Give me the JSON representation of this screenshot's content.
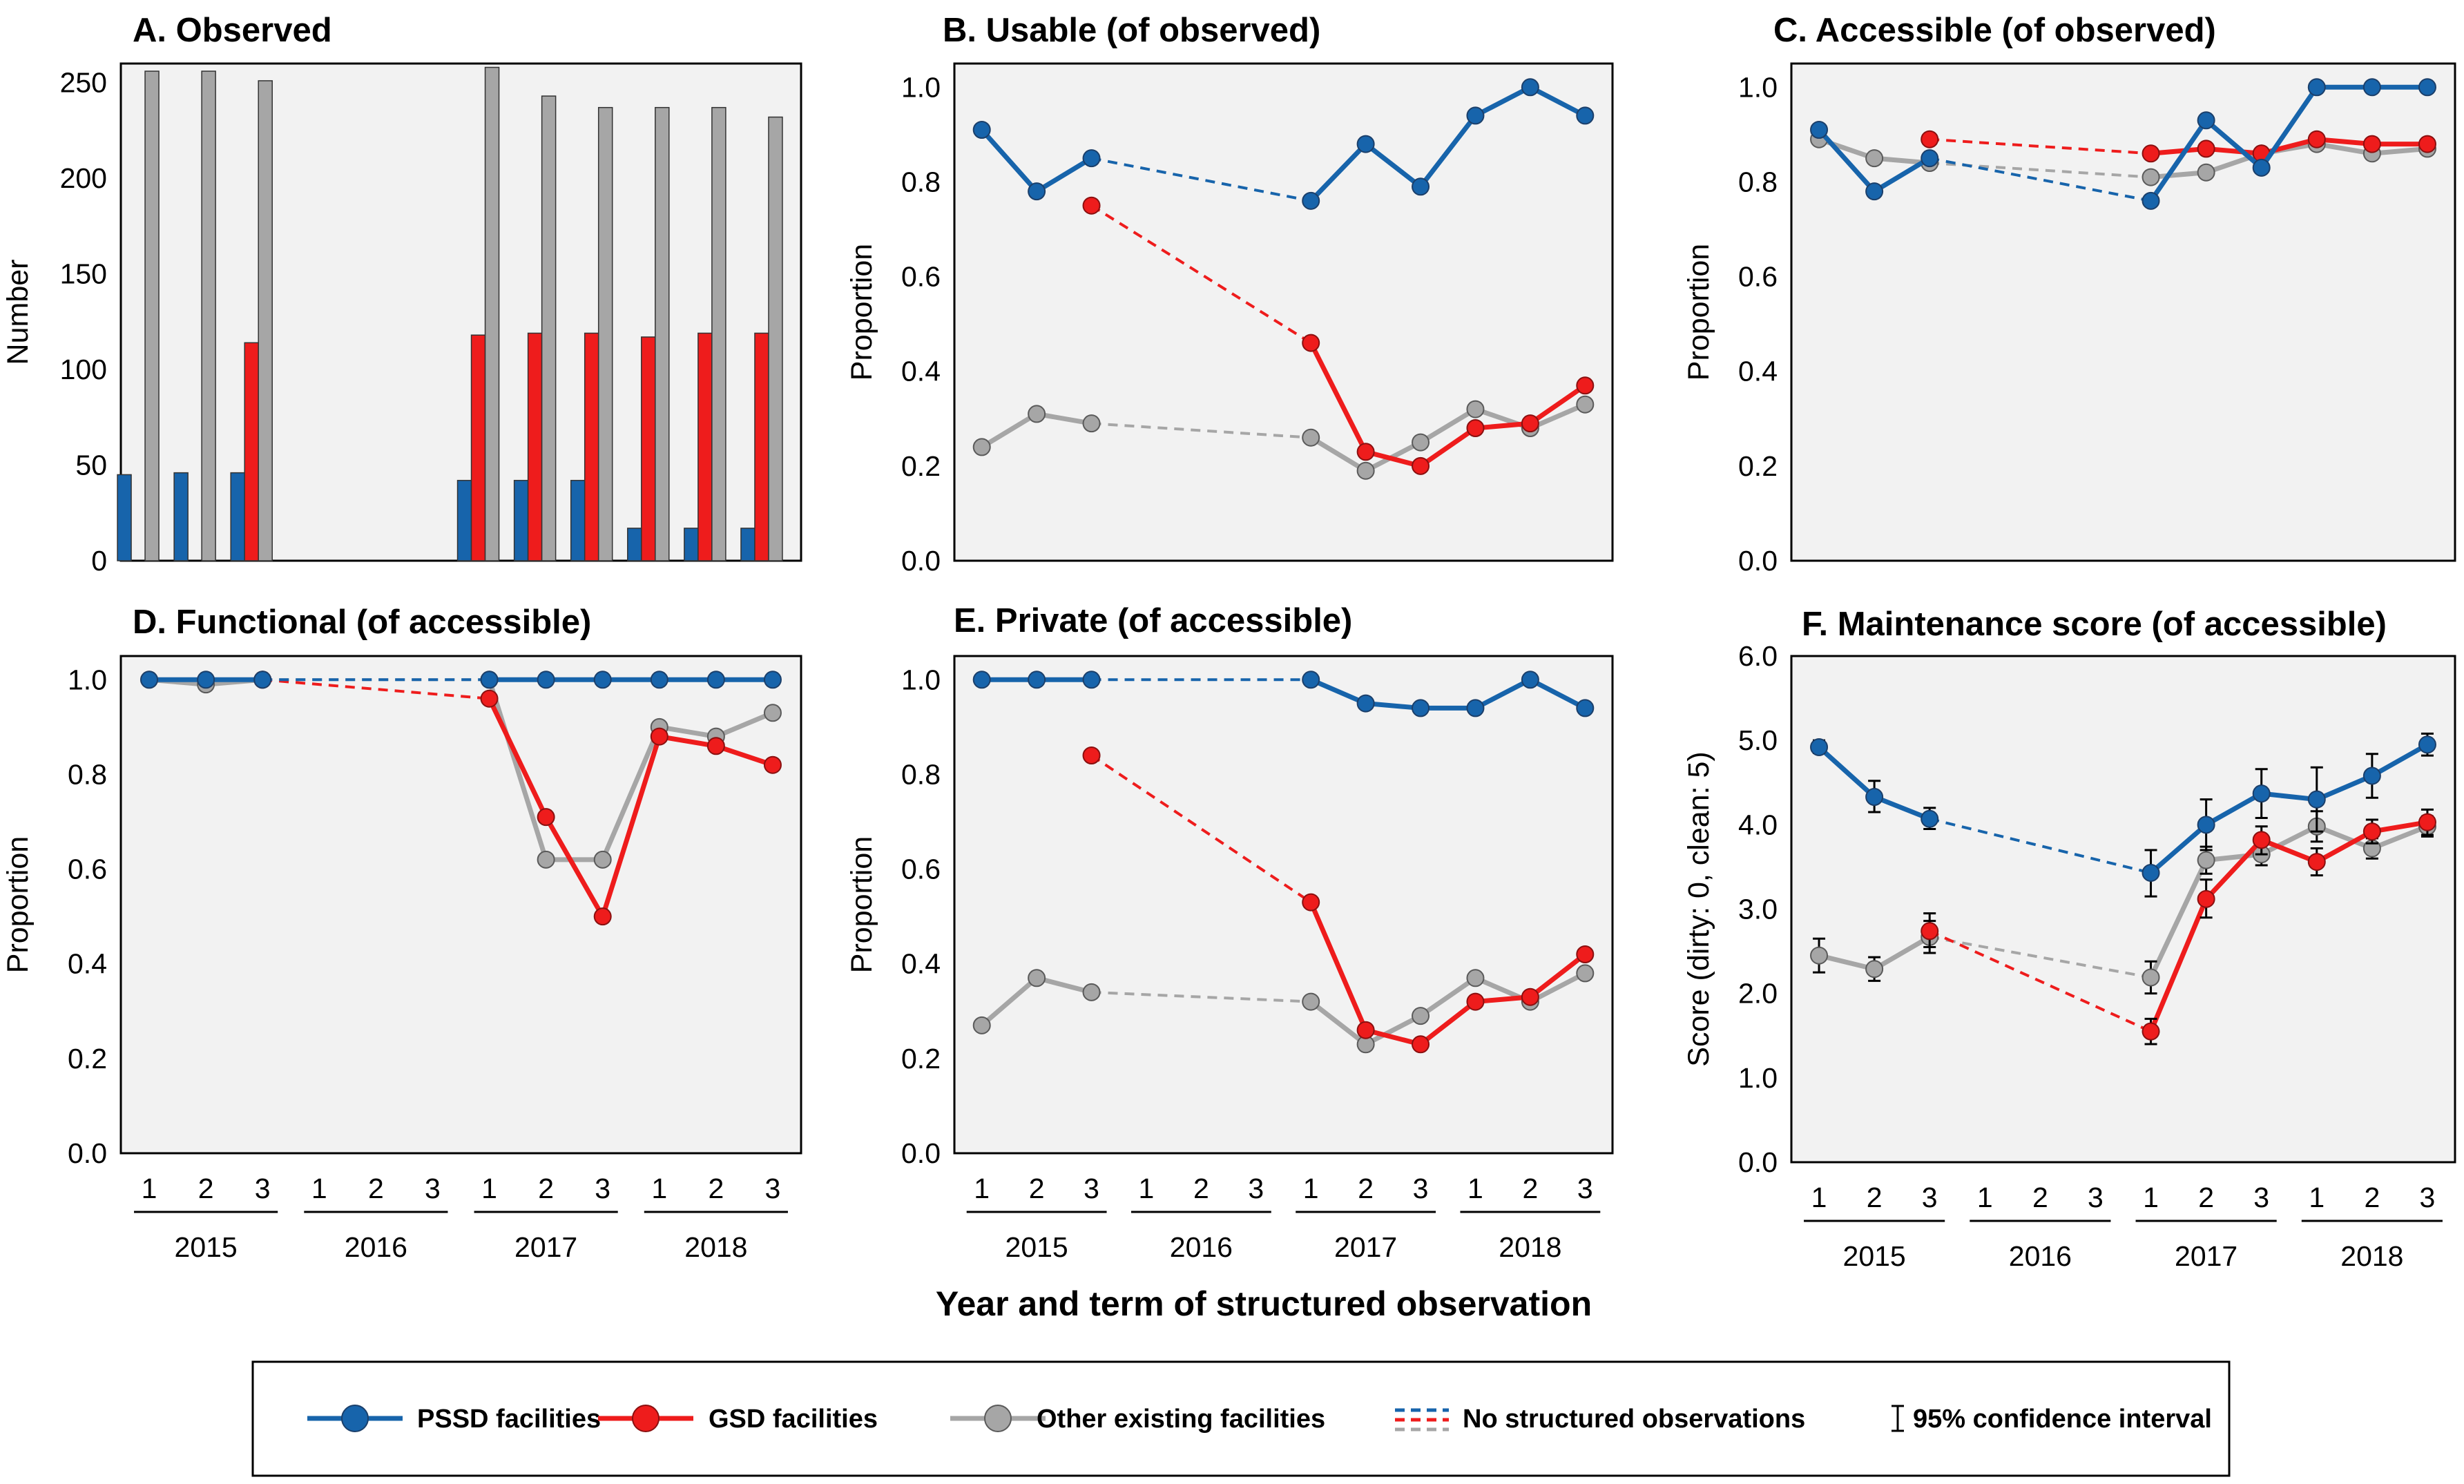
{
  "x_axis": {
    "terms": [
      "1",
      "2",
      "3"
    ],
    "years": [
      "2015",
      "2016",
      "2017",
      "2018"
    ],
    "title": "Year and term of structured observation"
  },
  "legend": {
    "pssd": "PSSD facilities",
    "gsd": "GSD facilities",
    "other": "Other existing facilities",
    "noobs": "No structured observations",
    "ci": "95% confidence interval"
  },
  "colors": {
    "pssd": "#1764ab",
    "gsd": "#ee1c1c",
    "other": "#a6a6a6",
    "panel_bg": "#f2f2f2"
  },
  "chart_data": [
    {
      "id": "A",
      "type": "bar",
      "title": "A. Observed",
      "ylabel": "Number",
      "ylim": [
        0,
        260
      ],
      "yticks": [
        0,
        50,
        100,
        150,
        200,
        250
      ],
      "ytick_labels": [
        "0",
        "50",
        "100",
        "150",
        "200",
        "250"
      ],
      "series": [
        {
          "key": "pssd",
          "name": "PSSD facilities",
          "values": [
            45,
            46,
            46,
            null,
            null,
            null,
            42,
            42,
            42,
            17,
            17,
            17
          ]
        },
        {
          "key": "gsd",
          "name": "GSD facilities",
          "values": [
            null,
            null,
            114,
            null,
            null,
            null,
            118,
            119,
            119,
            117,
            119,
            119
          ]
        },
        {
          "key": "other",
          "name": "Other existing facilities",
          "values": [
            256,
            256,
            251,
            null,
            null,
            null,
            258,
            243,
            237,
            237,
            237,
            232
          ]
        }
      ]
    },
    {
      "id": "B",
      "type": "line",
      "title": "B.  Usable (of observed)",
      "ylabel": "Proportion",
      "ylim": [
        0,
        1.05
      ],
      "yticks": [
        0,
        0.2,
        0.4,
        0.6,
        0.8,
        1.0
      ],
      "ytick_labels": [
        "0.0",
        "0.2",
        "0.4",
        "0.6",
        "0.8",
        "1.0"
      ],
      "series": [
        {
          "key": "pssd",
          "name": "PSSD facilities",
          "values": [
            0.91,
            0.78,
            0.85,
            null,
            null,
            null,
            0.76,
            0.88,
            0.79,
            0.94,
            1.0,
            0.94
          ]
        },
        {
          "key": "gsd",
          "name": "GSD facilities",
          "values": [
            null,
            null,
            0.75,
            null,
            null,
            null,
            0.46,
            0.23,
            0.2,
            0.28,
            0.29,
            0.37
          ]
        },
        {
          "key": "other",
          "name": "Other existing facilities",
          "values": [
            0.24,
            0.31,
            0.29,
            null,
            null,
            null,
            0.26,
            0.19,
            0.25,
            0.32,
            0.28,
            0.33
          ]
        }
      ]
    },
    {
      "id": "C",
      "type": "line",
      "title": "C.  Accessible (of observed)",
      "ylabel": "Proportion",
      "ylim": [
        0,
        1.05
      ],
      "yticks": [
        0,
        0.2,
        0.4,
        0.6,
        0.8,
        1.0
      ],
      "ytick_labels": [
        "0.0",
        "0.2",
        "0.4",
        "0.6",
        "0.8",
        "1.0"
      ],
      "series": [
        {
          "key": "pssd",
          "name": "PSSD facilities",
          "values": [
            0.91,
            0.78,
            0.85,
            null,
            null,
            null,
            0.76,
            0.93,
            0.83,
            1.0,
            1.0,
            1.0
          ]
        },
        {
          "key": "gsd",
          "name": "GSD facilities",
          "values": [
            null,
            null,
            0.89,
            null,
            null,
            null,
            0.86,
            0.87,
            0.86,
            0.89,
            0.88,
            0.88
          ]
        },
        {
          "key": "other",
          "name": "Other existing facilities",
          "values": [
            0.89,
            0.85,
            0.84,
            null,
            null,
            null,
            0.81,
            0.82,
            0.86,
            0.88,
            0.86,
            0.87
          ]
        }
      ]
    },
    {
      "id": "D",
      "type": "line",
      "title": "D.  Functional (of accessible)",
      "ylabel": "Proportion",
      "ylim": [
        0,
        1.05
      ],
      "yticks": [
        0,
        0.2,
        0.4,
        0.6,
        0.8,
        1.0
      ],
      "ytick_labels": [
        "0.0",
        "0.2",
        "0.4",
        "0.6",
        "0.8",
        "1.0"
      ],
      "series": [
        {
          "key": "pssd",
          "name": "PSSD facilities",
          "values": [
            1.0,
            1.0,
            1.0,
            null,
            null,
            null,
            1.0,
            1.0,
            1.0,
            1.0,
            1.0,
            1.0
          ]
        },
        {
          "key": "gsd",
          "name": "GSD facilities",
          "values": [
            null,
            null,
            1.0,
            null,
            null,
            null,
            0.96,
            0.71,
            0.5,
            0.88,
            0.86,
            0.82
          ]
        },
        {
          "key": "other",
          "name": "Other existing facilities",
          "values": [
            1.0,
            0.99,
            1.0,
            null,
            null,
            null,
            1.0,
            0.62,
            0.62,
            0.9,
            0.88,
            0.93
          ]
        }
      ]
    },
    {
      "id": "E",
      "type": "line",
      "title": "E.  Private (of accessible)",
      "ylabel": "Proportion",
      "ylim": [
        0,
        1.05
      ],
      "yticks": [
        0,
        0.2,
        0.4,
        0.6,
        0.8,
        1.0
      ],
      "ytick_labels": [
        "0.0",
        "0.2",
        "0.4",
        "0.6",
        "0.8",
        "1.0"
      ],
      "series": [
        {
          "key": "pssd",
          "name": "PSSD facilities",
          "values": [
            1.0,
            1.0,
            1.0,
            null,
            null,
            null,
            1.0,
            0.95,
            0.94,
            0.94,
            1.0,
            0.94
          ]
        },
        {
          "key": "gsd",
          "name": "GSD facilities",
          "values": [
            null,
            null,
            0.84,
            null,
            null,
            null,
            0.53,
            0.26,
            0.23,
            0.32,
            0.33,
            0.42
          ]
        },
        {
          "key": "other",
          "name": "Other existing facilities",
          "values": [
            0.27,
            0.37,
            0.34,
            null,
            null,
            null,
            0.32,
            0.23,
            0.29,
            0.37,
            0.32,
            0.38
          ]
        }
      ]
    },
    {
      "id": "F",
      "type": "line",
      "title": "F.  Maintenance score (of accessible)",
      "ylabel": "Score (dirty: 0, clean: 5)",
      "ylim": [
        0,
        6
      ],
      "yticks": [
        0,
        1,
        2,
        3,
        4,
        5,
        6
      ],
      "ytick_labels": [
        "0.0",
        "1.0",
        "2.0",
        "3.0",
        "4.0",
        "5.0",
        "6.0"
      ],
      "series": [
        {
          "key": "pssd",
          "name": "PSSD facilities",
          "values": [
            4.92,
            4.33,
            4.07,
            null,
            null,
            null,
            3.43,
            4.0,
            4.37,
            4.3,
            4.58,
            4.95
          ],
          "ci": [
            [
              4.85,
              5.0
            ],
            [
              4.15,
              4.52
            ],
            [
              3.95,
              4.2
            ],
            null,
            null,
            null,
            [
              3.15,
              3.7
            ],
            [
              3.7,
              4.3
            ],
            [
              4.08,
              4.66
            ],
            [
              3.92,
              4.68
            ],
            [
              4.32,
              4.84
            ],
            [
              4.82,
              5.08
            ]
          ]
        },
        {
          "key": "gsd",
          "name": "GSD facilities",
          "values": [
            null,
            null,
            2.74,
            null,
            null,
            null,
            1.55,
            3.12,
            3.82,
            3.56,
            3.92,
            4.03
          ],
          "ci": [
            null,
            null,
            [
              2.55,
              2.95
            ],
            null,
            null,
            null,
            [
              1.4,
              1.7
            ],
            [
              2.9,
              3.35
            ],
            [
              3.65,
              3.98
            ],
            [
              3.4,
              3.72
            ],
            [
              3.78,
              4.06
            ],
            [
              3.88,
              4.18
            ]
          ]
        },
        {
          "key": "other",
          "name": "Other existing facilities",
          "values": [
            2.45,
            2.29,
            2.67,
            null,
            null,
            null,
            2.19,
            3.58,
            3.65,
            3.98,
            3.72,
            3.98
          ],
          "ci": [
            [
              2.25,
              2.65
            ],
            [
              2.15,
              2.43
            ],
            [
              2.48,
              2.86
            ],
            null,
            null,
            null,
            [
              2.0,
              2.38
            ],
            [
              3.42,
              3.74
            ],
            [
              3.52,
              3.78
            ],
            [
              3.8,
              4.16
            ],
            [
              3.6,
              3.84
            ],
            [
              3.86,
              4.1
            ]
          ]
        }
      ]
    }
  ]
}
